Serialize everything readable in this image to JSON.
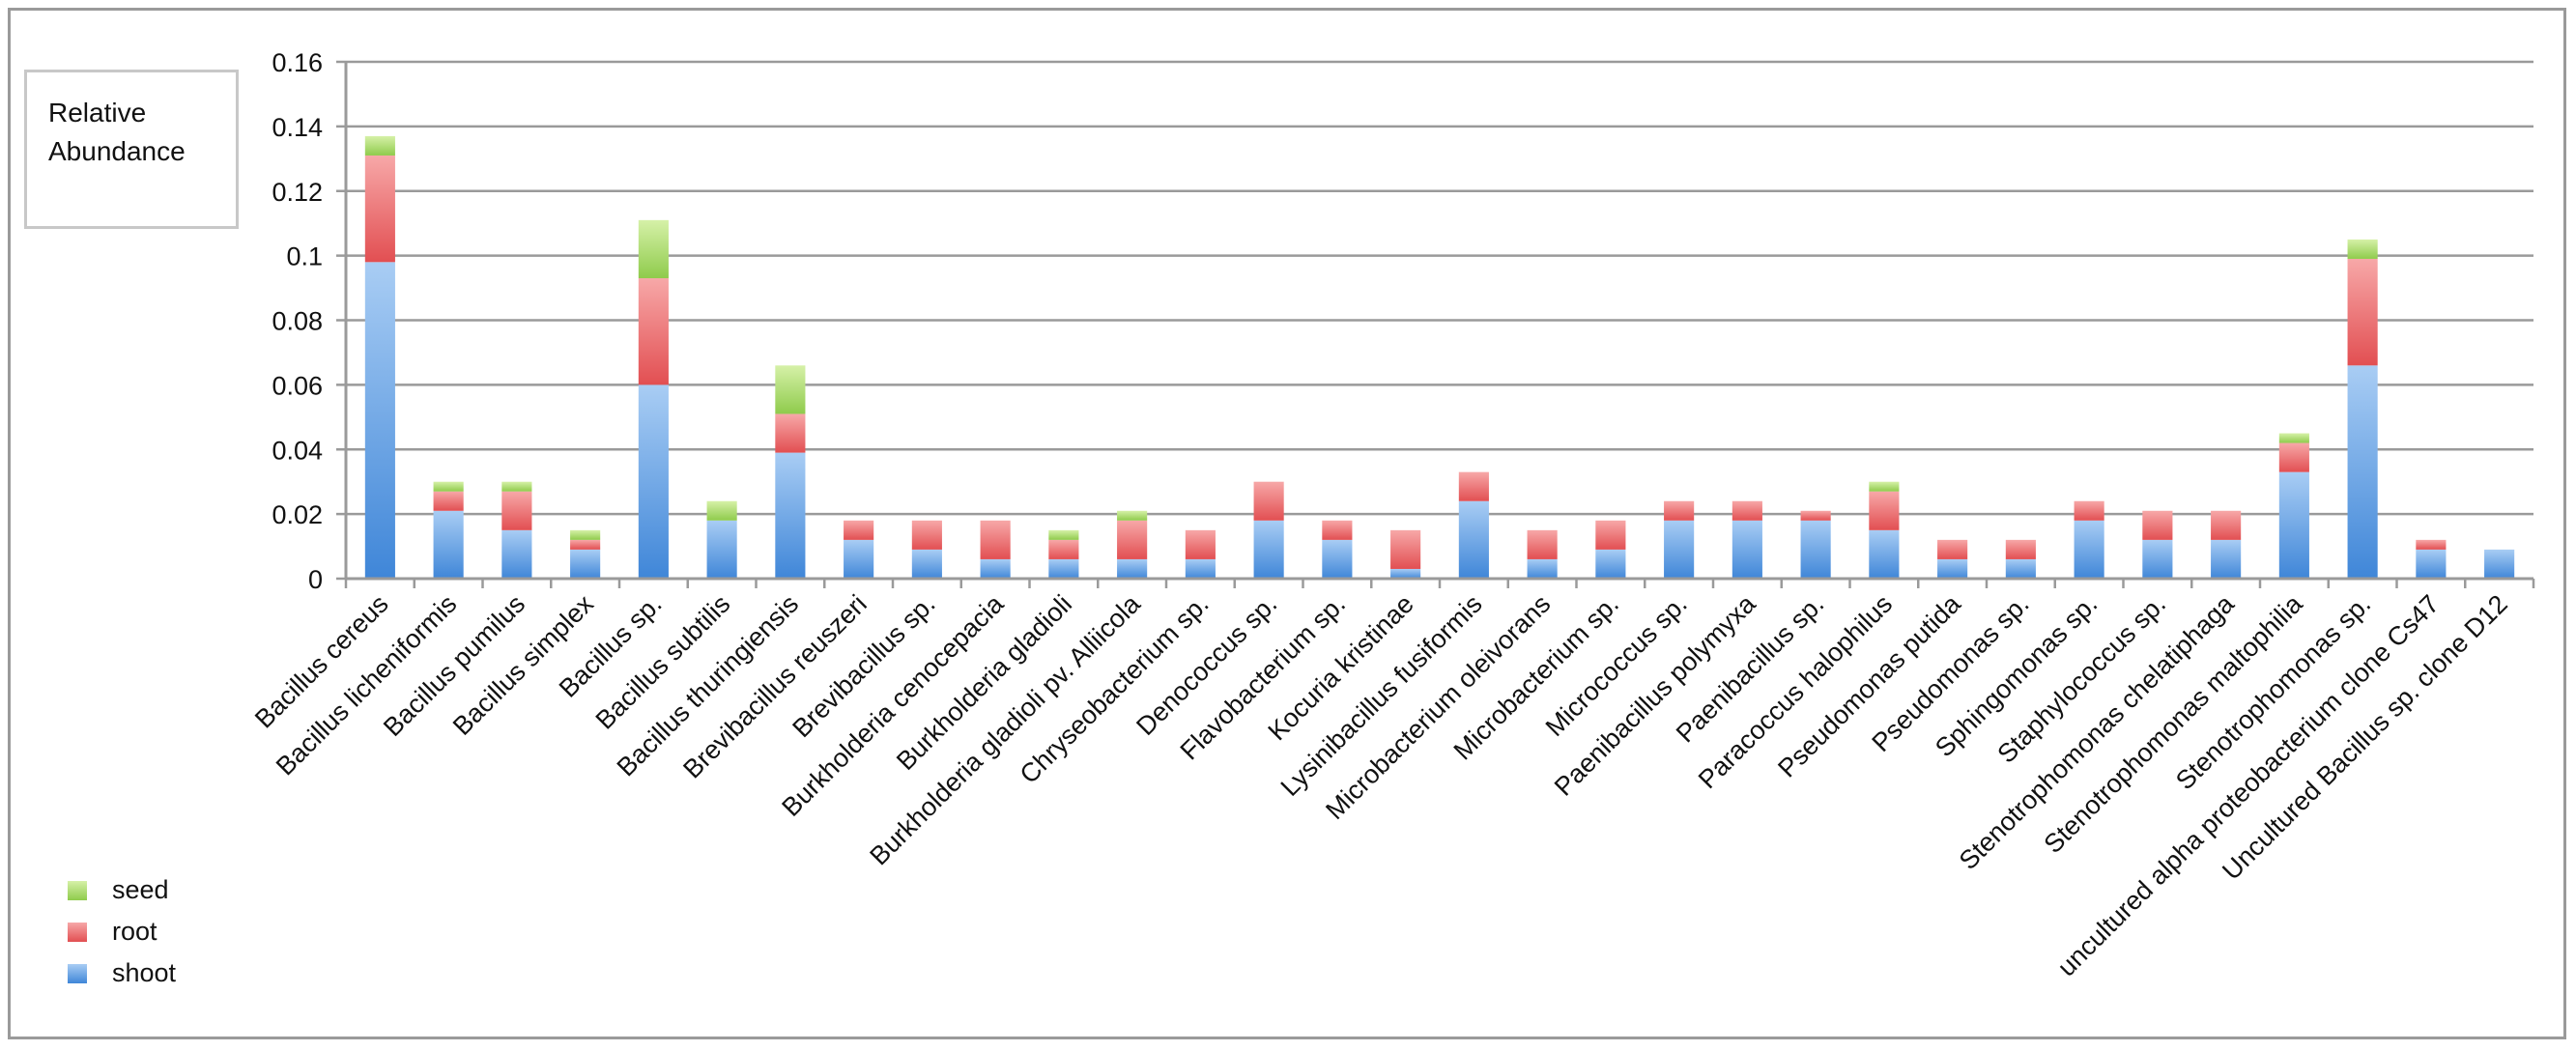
{
  "chart_data": {
    "type": "bar",
    "stacked": true,
    "ylabel": "Relative\nAbundance",
    "ylim": [
      0,
      0.16
    ],
    "yticks": [
      "0",
      "0.02",
      "0.04",
      "0.06",
      "0.08",
      "0.1",
      "0.12",
      "0.14",
      "0.16"
    ],
    "grid": true,
    "legend_position": "bottom-left",
    "categories": [
      "Bacillus cereus",
      "Bacillus licheniformis",
      "Bacillus pumilus",
      "Bacillus simplex",
      "Bacillus sp.",
      "Bacillus subtilis",
      "Bacillus thuringiensis",
      "Brevibacillus reuszeri",
      "Brevibacillus sp.",
      "Burkholderia cenocepacia",
      "Burkholderia gladioli",
      "Burkholderia gladioli pv. Alliicola",
      "Chryseobacterium sp.",
      "Denococcus sp.",
      "Flavobacterium sp.",
      "Kocuria kristinae",
      "Lysinibacillus fusiformis",
      "Microbacterium oleivorans",
      "Microbacterium sp.",
      "Micrococcus sp.",
      "Paenibacillus polymyxa",
      "Paenibacillus sp.",
      "Paracoccus halophilus",
      "Pseudomonas putida",
      "Pseudomonas sp.",
      "Sphingomonas sp.",
      "Staphylococcus sp.",
      "Stenotrophomonas chelatiphaga",
      "Stenotrophomonas maltophilia",
      "Stenotrophomonas sp.",
      "uncultured alpha proteobacterium clone Cs47",
      "Uncultured Bacillus sp. clone D12"
    ],
    "series": [
      {
        "name": "shoot",
        "color": "#5b9bd5",
        "values": [
          0.098,
          0.021,
          0.015,
          0.009,
          0.06,
          0.018,
          0.039,
          0.012,
          0.009,
          0.006,
          0.006,
          0.006,
          0.006,
          0.018,
          0.012,
          0.003,
          0.024,
          0.006,
          0.009,
          0.018,
          0.018,
          0.018,
          0.015,
          0.006,
          0.006,
          0.018,
          0.012,
          0.012,
          0.033,
          0.066,
          0.009,
          0.009
        ]
      },
      {
        "name": "root",
        "color": "#e8585a",
        "values": [
          0.033,
          0.006,
          0.012,
          0.003,
          0.033,
          0.0,
          0.012,
          0.006,
          0.009,
          0.012,
          0.006,
          0.012,
          0.009,
          0.012,
          0.006,
          0.012,
          0.009,
          0.009,
          0.009,
          0.006,
          0.006,
          0.003,
          0.012,
          0.006,
          0.006,
          0.006,
          0.009,
          0.009,
          0.009,
          0.033,
          0.003,
          0.0
        ]
      },
      {
        "name": "seed",
        "color": "#9bd35a",
        "values": [
          0.006,
          0.003,
          0.003,
          0.003,
          0.018,
          0.006,
          0.015,
          0.0,
          0.0,
          0.0,
          0.003,
          0.003,
          0.0,
          0.0,
          0.0,
          0.0,
          0.0,
          0.0,
          0.0,
          0.0,
          0.0,
          0.0,
          0.003,
          0.0,
          0.0,
          0.0,
          0.0,
          0.0,
          0.003,
          0.006,
          0.0,
          0.0
        ]
      }
    ]
  }
}
